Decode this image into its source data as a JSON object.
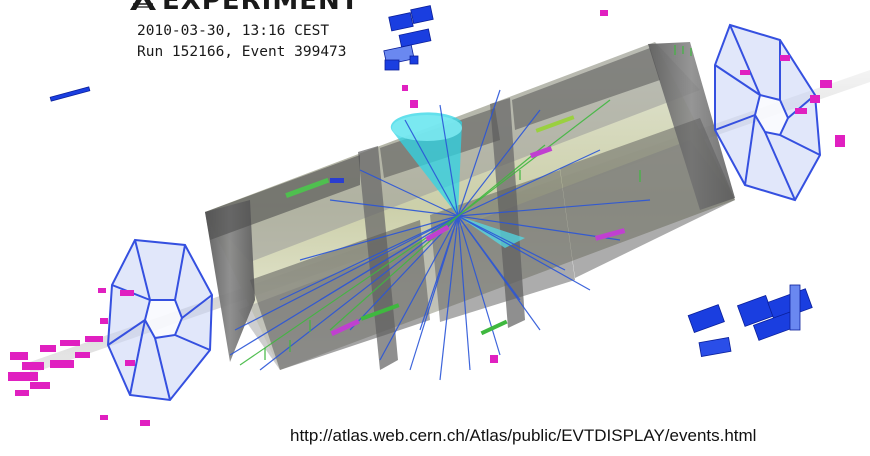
{
  "header": {
    "experiment_name": "EXPERIMENT",
    "datetime": "2010-03-30, 13:16 CEST",
    "run_event": "Run 152166, Event 399473"
  },
  "footer": {
    "url": "http://atlas.web.cern.ch/Atlas/public/EVTDISPLAY/events.html"
  },
  "colors": {
    "track_blue": "#2a55d8",
    "jet_cone_cyan": "#2fd6e6",
    "endcap_hits_magenta": "#e020c0",
    "muon_chamber_blue": "#1a3ee0",
    "barrel_shadow": "#6e6e6e",
    "track_green": "#3fb83f"
  },
  "icons": {
    "logo": "atlas-logo-icon"
  }
}
